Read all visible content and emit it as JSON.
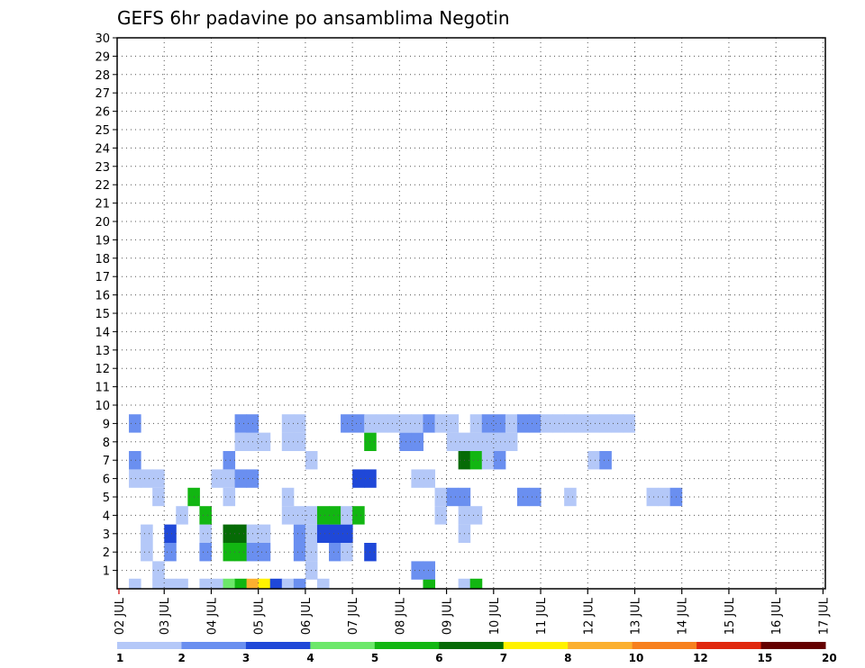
{
  "chart_data": {
    "type": "heatmap",
    "title": "GEFS 6hr padavine po ansamblima Negotin",
    "x_tick_labels": [
      "02 JUL",
      "03 JUL",
      "04 JUL",
      "05 JUL",
      "06 JUL",
      "07 JUL",
      "08 JUL",
      "09 JUL",
      "10 JUL",
      "11 JUL",
      "12 JUL",
      "13 JUL",
      "14 JUL",
      "15 JUL",
      "16 JUL",
      "17 JUL"
    ],
    "y_tick_labels": [
      "1",
      "2",
      "3",
      "4",
      "5",
      "6",
      "7",
      "8",
      "9",
      "10",
      "11",
      "12",
      "13",
      "14",
      "15",
      "16",
      "17",
      "18",
      "19",
      "20",
      "21",
      "22",
      "23",
      "24",
      "25",
      "26",
      "27",
      "28",
      "29",
      "30"
    ],
    "x_steps_per_day": 4,
    "y_range": [
      0,
      30
    ],
    "grid": true,
    "legend": {
      "placement": "bottom",
      "colors": [
        "#b4c8f8",
        "#6a8ff0",
        "#1f48d8",
        "#6ce86a",
        "#12b612",
        "#066b06",
        "#fff200",
        "#fbb030",
        "#f7801e",
        "#e0280e",
        "#640000"
      ],
      "labels": [
        "1",
        "2",
        "3",
        "4",
        "5",
        "6",
        "7",
        "8",
        "10",
        "12",
        "15",
        "20"
      ]
    },
    "cells": [
      [
        0,
        1,
        1
      ],
      [
        0,
        3,
        1
      ],
      [
        0,
        4,
        1
      ],
      [
        0,
        5,
        1
      ],
      [
        0,
        7,
        1
      ],
      [
        0,
        8,
        1
      ],
      [
        0,
        9,
        4
      ],
      [
        0,
        10,
        5
      ],
      [
        0,
        11,
        8
      ],
      [
        0,
        12,
        7
      ],
      [
        0,
        13,
        3
      ],
      [
        0,
        14,
        1
      ],
      [
        0,
        15,
        2
      ],
      [
        0,
        17,
        1
      ],
      [
        0,
        26,
        5
      ],
      [
        0,
        29,
        1
      ],
      [
        0,
        30,
        5
      ],
      [
        1,
        3,
        1
      ],
      [
        1,
        16,
        1
      ],
      [
        1,
        25,
        2
      ],
      [
        1,
        26,
        2
      ],
      [
        2,
        2,
        1
      ],
      [
        2,
        4,
        2
      ],
      [
        2,
        7,
        2
      ],
      [
        2,
        9,
        5
      ],
      [
        2,
        10,
        5
      ],
      [
        2,
        11,
        2
      ],
      [
        2,
        12,
        2
      ],
      [
        2,
        15,
        2
      ],
      [
        2,
        16,
        1
      ],
      [
        2,
        18,
        2
      ],
      [
        2,
        19,
        1
      ],
      [
        2,
        21,
        3
      ],
      [
        3,
        2,
        1
      ],
      [
        3,
        4,
        3
      ],
      [
        3,
        7,
        1
      ],
      [
        3,
        9,
        6
      ],
      [
        3,
        10,
        6
      ],
      [
        3,
        11,
        1
      ],
      [
        3,
        12,
        1
      ],
      [
        3,
        15,
        2
      ],
      [
        3,
        16,
        1
      ],
      [
        3,
        17,
        3
      ],
      [
        3,
        18,
        3
      ],
      [
        3,
        19,
        3
      ],
      [
        3,
        29,
        1
      ],
      [
        4,
        5,
        1
      ],
      [
        4,
        7,
        5
      ],
      [
        4,
        14,
        1
      ],
      [
        4,
        15,
        1
      ],
      [
        4,
        16,
        1
      ],
      [
        4,
        17,
        5
      ],
      [
        4,
        18,
        5
      ],
      [
        4,
        19,
        1
      ],
      [
        4,
        20,
        5
      ],
      [
        4,
        27,
        1
      ],
      [
        4,
        29,
        1
      ],
      [
        4,
        30,
        1
      ],
      [
        5,
        3,
        1
      ],
      [
        5,
        6,
        5
      ],
      [
        5,
        9,
        1
      ],
      [
        5,
        14,
        1
      ],
      [
        5,
        27,
        1
      ],
      [
        5,
        28,
        2
      ],
      [
        5,
        29,
        2
      ],
      [
        5,
        34,
        2
      ],
      [
        5,
        35,
        2
      ],
      [
        5,
        38,
        1
      ],
      [
        5,
        45,
        1
      ],
      [
        5,
        46,
        1
      ],
      [
        5,
        47,
        2
      ],
      [
        6,
        1,
        1
      ],
      [
        6,
        2,
        1
      ],
      [
        6,
        3,
        1
      ],
      [
        6,
        8,
        1
      ],
      [
        6,
        9,
        1
      ],
      [
        6,
        10,
        2
      ],
      [
        6,
        11,
        2
      ],
      [
        6,
        20,
        3
      ],
      [
        6,
        21,
        3
      ],
      [
        6,
        25,
        1
      ],
      [
        6,
        26,
        1
      ],
      [
        7,
        1,
        2
      ],
      [
        7,
        9,
        2
      ],
      [
        7,
        16,
        1
      ],
      [
        7,
        29,
        6
      ],
      [
        7,
        30,
        5
      ],
      [
        7,
        31,
        1
      ],
      [
        7,
        32,
        2
      ],
      [
        7,
        40,
        1
      ],
      [
        7,
        41,
        2
      ],
      [
        8,
        10,
        1
      ],
      [
        8,
        11,
        1
      ],
      [
        8,
        11,
        1
      ],
      [
        8,
        12,
        1
      ],
      [
        8,
        14,
        1
      ],
      [
        8,
        15,
        1
      ],
      [
        8,
        21,
        5
      ],
      [
        8,
        24,
        2
      ],
      [
        8,
        25,
        2
      ],
      [
        8,
        28,
        1
      ],
      [
        8,
        29,
        1
      ],
      [
        8,
        30,
        1
      ],
      [
        8,
        31,
        1
      ],
      [
        8,
        32,
        1
      ],
      [
        8,
        33,
        1
      ],
      [
        9,
        1,
        2
      ],
      [
        9,
        10,
        2
      ],
      [
        9,
        11,
        2
      ],
      [
        9,
        14,
        1
      ],
      [
        9,
        15,
        1
      ],
      [
        9,
        19,
        2
      ],
      [
        9,
        20,
        2
      ],
      [
        9,
        21,
        1
      ],
      [
        9,
        22,
        1
      ],
      [
        9,
        23,
        1
      ],
      [
        9,
        24,
        1
      ],
      [
        9,
        25,
        1
      ],
      [
        9,
        26,
        2
      ],
      [
        9,
        27,
        1
      ],
      [
        9,
        28,
        1
      ],
      [
        9,
        30,
        1
      ],
      [
        9,
        31,
        2
      ],
      [
        9,
        32,
        2
      ],
      [
        9,
        33,
        1
      ],
      [
        9,
        34,
        2
      ],
      [
        9,
        35,
        2
      ],
      [
        9,
        36,
        1
      ],
      [
        9,
        37,
        1
      ],
      [
        9,
        38,
        1
      ],
      [
        9,
        39,
        1
      ],
      [
        9,
        40,
        1
      ],
      [
        9,
        41,
        1
      ],
      [
        9,
        42,
        1
      ],
      [
        9,
        43,
        1
      ]
    ]
  }
}
